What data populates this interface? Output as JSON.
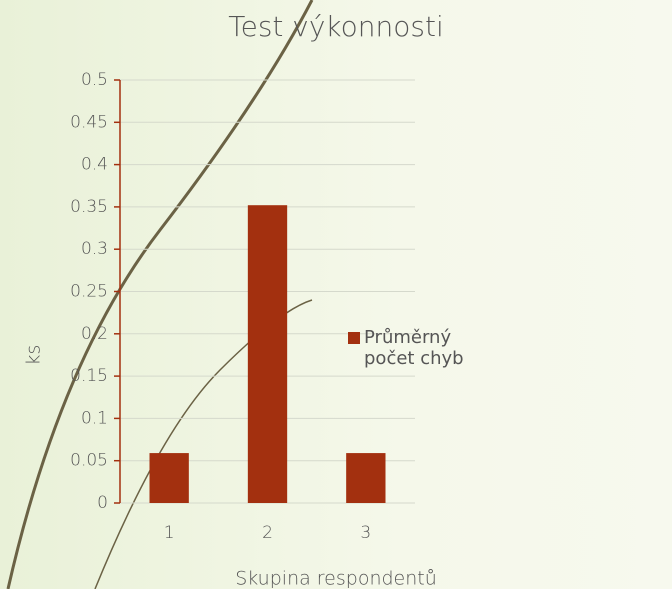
{
  "chart_data": {
    "type": "bar",
    "title": "Test výkonnosti",
    "x_label": "Skupina respondentů",
    "y_label": "ks",
    "categories": [
      "1",
      "2",
      "3"
    ],
    "series": [
      {
        "name": "Průměrný počet chyb",
        "color": "#a3300f",
        "values": [
          0.059,
          0.352,
          0.059
        ]
      }
    ],
    "ylim": [
      0,
      0.5
    ],
    "yticks": [
      0,
      0.05,
      0.1,
      0.15,
      0.2,
      0.25,
      0.3,
      0.35,
      0.4,
      0.45,
      0.5
    ],
    "grid": true,
    "legend": "right"
  }
}
